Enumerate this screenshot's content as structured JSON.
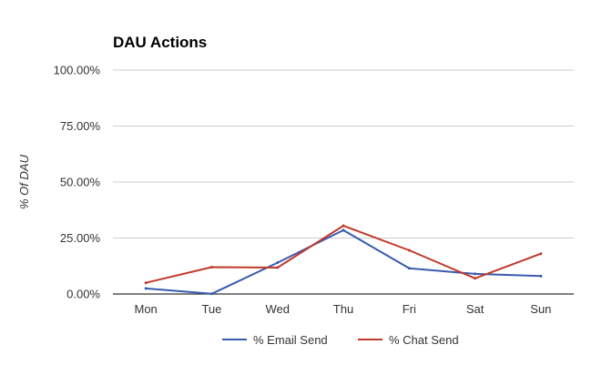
{
  "chart_data": {
    "type": "line",
    "title": "DAU Actions",
    "xlabel": "",
    "ylabel": "% Of DAU",
    "categories": [
      "Mon",
      "Tue",
      "Wed",
      "Thu",
      "Fri",
      "Sat",
      "Sun"
    ],
    "ylim": [
      0,
      100
    ],
    "yticks": [
      {
        "value": 0,
        "label": "0.00%"
      },
      {
        "value": 25,
        "label": "25.00%"
      },
      {
        "value": 50,
        "label": "50.00%"
      },
      {
        "value": 75,
        "label": "75.00%"
      },
      {
        "value": 100,
        "label": "100.00%"
      }
    ],
    "grid": true,
    "legend_position": "bottom",
    "series": [
      {
        "name": "% Email Send",
        "color": "#3a5bad",
        "values": [
          2.5,
          0.1,
          14,
          28.5,
          11.5,
          9,
          8
        ]
      },
      {
        "name": "% Chat Send",
        "color": "#c0392b",
        "values": [
          5,
          12,
          11.8,
          30.5,
          19.5,
          7,
          18
        ]
      }
    ]
  }
}
